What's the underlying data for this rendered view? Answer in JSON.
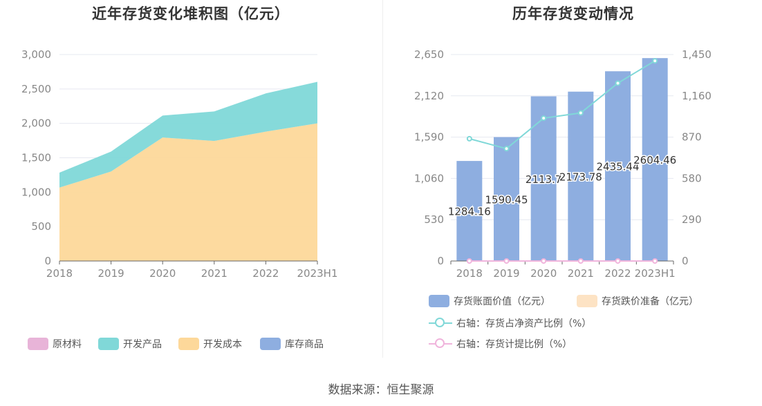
{
  "source_label": "数据来源：恒生聚源",
  "chart_data": [
    {
      "id": "left",
      "type": "area",
      "stacked": true,
      "title": "近年存货变化堆积图（亿元）",
      "categories": [
        "2018",
        "2019",
        "2020",
        "2021",
        "2022",
        "2023H1"
      ],
      "ylim": [
        0,
        3000
      ],
      "yticks": [
        0,
        500,
        1000,
        1500,
        2000,
        2500,
        3000
      ],
      "ytick_labels": [
        "0",
        "500",
        "1,000",
        "1,500",
        "2,000",
        "2,500",
        "3,000"
      ],
      "grid": true,
      "legend_position": "bottom",
      "series": [
        {
          "name": "原材料",
          "color": "#e8b4d8",
          "values": [
            0,
            0,
            0,
            0,
            0,
            0
          ]
        },
        {
          "name": "开发产品",
          "color": "#80d8d8",
          "values": [
            217,
            290,
            318,
            430,
            555,
            604
          ]
        },
        {
          "name": "开发成本",
          "color": "#fdd89a",
          "values": [
            1067,
            1300,
            1795,
            1744,
            1880,
            2000
          ]
        },
        {
          "name": "库存商品",
          "color": "#8eaee0",
          "values": [
            0,
            0,
            0,
            0,
            0,
            0
          ]
        }
      ],
      "stack_order": [
        "开发成本",
        "开发产品",
        "原材料",
        "库存商品"
      ]
    },
    {
      "id": "right",
      "type": "bar",
      "title": "历年存货变动情况",
      "categories": [
        "2018",
        "2019",
        "2020",
        "2021",
        "2022",
        "2023H1"
      ],
      "left_axis": {
        "ylim": [
          0,
          2650
        ],
        "ticks": [
          0,
          530,
          1060,
          1590,
          2120,
          2650
        ],
        "tick_labels": [
          "0",
          "530",
          "1,060",
          "1,590",
          "2,120",
          "2,650"
        ]
      },
      "right_axis": {
        "ylim": [
          0,
          1450
        ],
        "ticks": [
          0,
          290,
          580,
          870,
          1160,
          1450
        ],
        "tick_labels": [
          "0",
          "290",
          "580",
          "870",
          "1,160",
          "1,450"
        ]
      },
      "grid": true,
      "legend_position": "bottom",
      "series": [
        {
          "name": "存货账面价值（亿元）",
          "kind": "bar",
          "axis": "left",
          "color": "#8eaee0",
          "values": [
            1284.16,
            1590.45,
            2113.7,
            2173.78,
            2435.44,
            2604.46
          ],
          "labels": [
            "1284.16",
            "1590.45",
            "2113.7",
            "2173.78",
            "2435.44",
            "2604.46"
          ]
        },
        {
          "name": "存货跌价准备（亿元）",
          "kind": "bar",
          "axis": "left",
          "color": "#fde3c4",
          "values": [
            0,
            0,
            0,
            0,
            0,
            0
          ]
        },
        {
          "name": "右轴：存货占净资产比例（%）",
          "kind": "line",
          "axis": "right",
          "color": "#80d8d8",
          "values": [
            859,
            789,
            1003,
            1040,
            1249,
            1406
          ]
        },
        {
          "name": "右轴：存货计提比例（%）",
          "kind": "line",
          "axis": "right",
          "color": "#f0b4dc",
          "values": [
            0,
            0,
            0,
            0,
            0,
            0
          ]
        }
      ]
    }
  ]
}
